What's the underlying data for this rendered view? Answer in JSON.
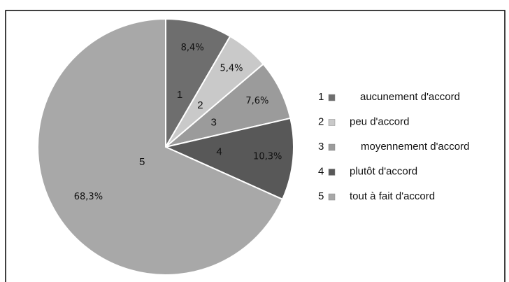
{
  "chart_data": {
    "type": "pie",
    "categories": [
      "1",
      "2",
      "3",
      "4",
      "5"
    ],
    "category_names": [
      "aucunement d'accord",
      "peu d'accord",
      "moyennement d'accord",
      "plutôt d'accord",
      "tout à fait d'accord"
    ],
    "values": [
      8.4,
      5.4,
      7.6,
      10.3,
      68.3
    ],
    "value_labels": [
      "8,4%",
      "5,4%",
      "7,6%",
      "10,3%",
      "68,3%"
    ],
    "colors": [
      "#6e6e6e",
      "#c9c9c9",
      "#9b9b9b",
      "#585858",
      "#a8a8a8"
    ],
    "legend": "right"
  }
}
